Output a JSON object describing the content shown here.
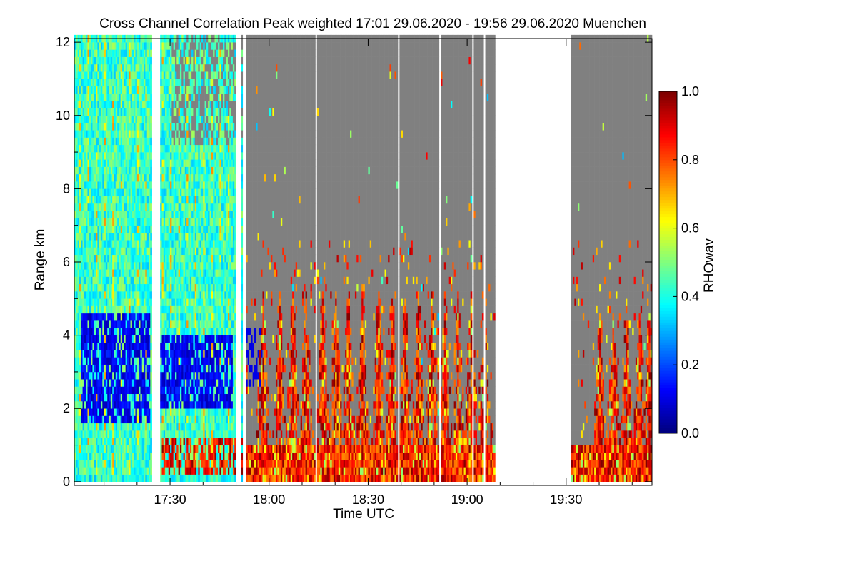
{
  "chart_data": {
    "type": "heatmap",
    "title": "Cross Channel Correlation Peak weighted",
    "time_range_text": "17:01 29.06.2020 - 19:56 29.06.2020",
    "location": "Muenchen",
    "xlabel": "Time UTC",
    "ylabel": "Range km",
    "x_unit": "minutes since 17:00 UTC",
    "xlim": [
      1,
      176
    ],
    "ylim": [
      -0.1,
      12.1
    ],
    "x_ticks": [
      {
        "value": 30,
        "label": "17:30"
      },
      {
        "value": 60,
        "label": "18:00"
      },
      {
        "value": 90,
        "label": "18:30"
      },
      {
        "value": 120,
        "label": "19:00"
      },
      {
        "value": 150,
        "label": "19:30"
      }
    ],
    "y_ticks": [
      {
        "value": 0,
        "label": "0"
      },
      {
        "value": 2,
        "label": "2"
      },
      {
        "value": 4,
        "label": "4"
      },
      {
        "value": 6,
        "label": "6"
      },
      {
        "value": 8,
        "label": "8"
      },
      {
        "value": 10,
        "label": "10"
      },
      {
        "value": 12,
        "label": "12"
      }
    ],
    "colorbar": {
      "label": "RHOwav",
      "range": [
        0.0,
        1.0
      ],
      "ticks": [
        {
          "value": 0.0,
          "label": "0.0"
        },
        {
          "value": 0.2,
          "label": "0.2"
        },
        {
          "value": 0.4,
          "label": "0.4"
        },
        {
          "value": 0.6,
          "label": "0.6"
        },
        {
          "value": 0.8,
          "label": "0.8"
        },
        {
          "value": 1.0,
          "label": "1.0"
        }
      ],
      "colormap": [
        "#00007f",
        "#0000ff",
        "#007fff",
        "#00ffff",
        "#7fff7f",
        "#ffff00",
        "#ff7f00",
        "#ff0000",
        "#7f0000"
      ]
    },
    "no_data_color": "#808080",
    "data_gaps_minutes": [
      [
        24.5,
        27.0
      ],
      [
        50.0,
        51.2
      ],
      [
        52.0,
        53.0
      ],
      [
        74.0,
        74.4
      ],
      [
        99.0,
        99.4
      ],
      [
        111.5,
        111.9
      ],
      [
        121.5,
        121.9
      ],
      [
        125.0,
        125.4
      ],
      [
        128.5,
        151.5
      ]
    ],
    "regimes": [
      {
        "name": "noisy low-correlation layer",
        "x_range": [
          1,
          52
        ],
        "typical_value": 0.45,
        "top_km": 12.0
      },
      {
        "name": "convective plumes",
        "x_range": [
          53,
          176
        ],
        "typical_value": 0.8,
        "top_km": 5.0
      }
    ],
    "plume_columns_minutes": [
      58,
      63,
      67,
      71,
      76,
      80,
      84,
      88,
      93,
      97,
      101,
      105,
      109,
      113,
      117,
      121,
      125,
      160,
      164,
      168,
      172,
      175
    ],
    "low_value_bands": [
      {
        "x_range": [
          3,
          24
        ],
        "y_range": [
          1.5,
          4.5
        ],
        "value": 0.1
      },
      {
        "x_range": [
          27,
          49
        ],
        "y_range": [
          1.8,
          4.0
        ],
        "value": 0.1
      },
      {
        "x_range": [
          53,
          57
        ],
        "y_range": [
          2.5,
          4.0
        ],
        "value": 0.12
      }
    ]
  }
}
